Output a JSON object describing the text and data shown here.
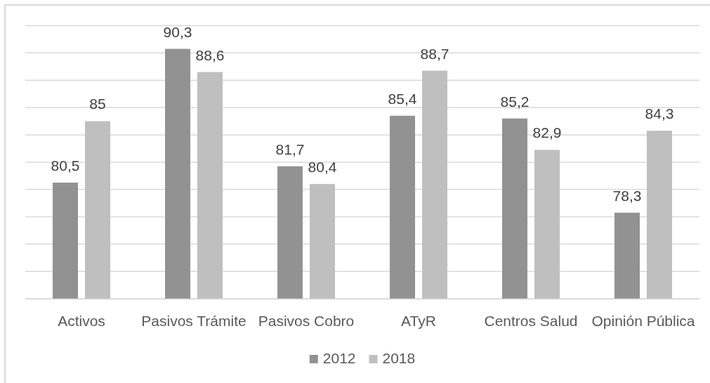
{
  "chart_data": {
    "type": "bar",
    "categories": [
      "Activos",
      "Pasivos Trámite",
      "Pasivos Cobro",
      "ATyR",
      "Centros Salud",
      "Opinión Pública"
    ],
    "series": [
      {
        "name": "2012",
        "color": "#929292",
        "values": [
          80.5,
          90.3,
          81.7,
          85.4,
          85.2,
          78.3
        ],
        "value_labels": [
          "80,5",
          "90,3",
          "81,7",
          "85,4",
          "85,2",
          "78,3"
        ]
      },
      {
        "name": "2018",
        "color": "#bfbfbf",
        "values": [
          85,
          88.6,
          80.4,
          88.7,
          82.9,
          84.3
        ],
        "value_labels": [
          "85",
          "88,6",
          "80,4",
          "88,7",
          "82,9",
          "84,3"
        ]
      }
    ],
    "ylim": [
      72,
      92
    ],
    "yticks": [
      {
        "value": 72,
        "label": null
      },
      {
        "value": 74,
        "label": null
      },
      {
        "value": 76,
        "label": null
      },
      {
        "value": 78,
        "label": null
      },
      {
        "value": 80,
        "label": null
      },
      {
        "value": 82,
        "label": null
      },
      {
        "value": 84,
        "label": null
      },
      {
        "value": 86,
        "label": null
      },
      {
        "value": 88,
        "label": null
      },
      {
        "value": 90,
        "label": null
      },
      {
        "value": 92,
        "label": null
      }
    ],
    "tick_labels": "x",
    "grid": "y",
    "legend": "bottom"
  }
}
